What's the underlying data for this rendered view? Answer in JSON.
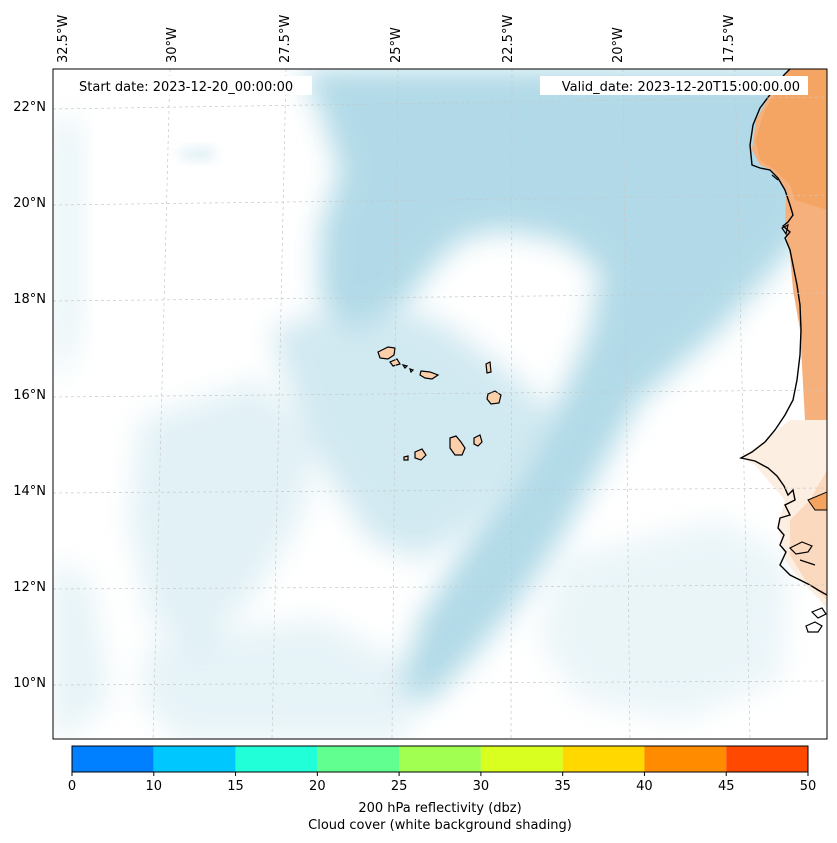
{
  "header": {
    "start_date": "Start date: 2023-12-20_00:00:00",
    "valid_date": "Valid_date: 2023-12-20T15:00:00.00"
  },
  "map": {
    "lon_labels": [
      "32.5°W",
      "30°W",
      "27.5°W",
      "25°W",
      "22.5°W",
      "20°W",
      "17.5°W"
    ],
    "lat_labels": [
      "22°N",
      "20°N",
      "18°N",
      "16°N",
      "14°N",
      "12°N",
      "10°N"
    ],
    "colors": {
      "ocean_cloud": "#add8e6",
      "land_dry": "#f4a460",
      "land_light": "#fbd5b5",
      "coast": "#000000",
      "grid": "#c8c8c8"
    }
  },
  "colorbar": {
    "ticks": [
      "0",
      "10",
      "15",
      "20",
      "25",
      "30",
      "35",
      "40",
      "45",
      "50"
    ],
    "colors": [
      "#0080ff",
      "#00c8ff",
      "#20ffd8",
      "#60ff90",
      "#a0ff50",
      "#d8ff20",
      "#ffd800",
      "#ff8c00",
      "#ff4800"
    ],
    "label": "200 hPa reflectivity (dbz)",
    "sublabel": "Cloud cover (white background shading)"
  }
}
